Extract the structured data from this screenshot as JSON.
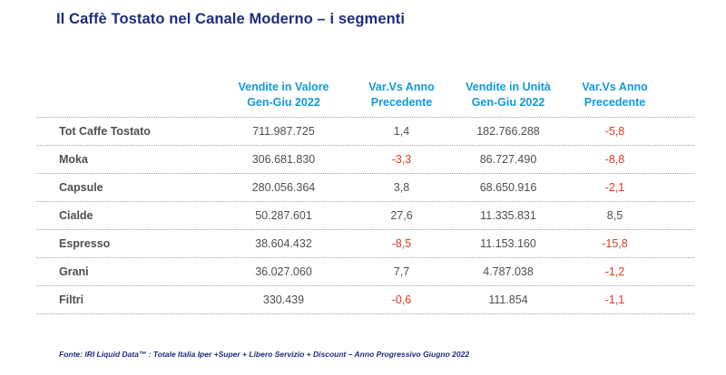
{
  "title": "Il Caffè Tostato nel Canale Moderno – i segmenti",
  "colors": {
    "navy": "#1F2C7C",
    "cyan": "#1299DB",
    "text": "#4F4F4F",
    "negative": "#DD3A21",
    "dotted": "#A3A3A3"
  },
  "table": {
    "columns": [
      {
        "line1": "Vendite in Valore",
        "line2": "Gen-Giu 2022"
      },
      {
        "line1": "Var.Vs Anno",
        "line2": "Precedente"
      },
      {
        "line1": "Vendite in Unità",
        "line2": "Gen-Giu 2022"
      },
      {
        "line1": "Var.Vs Anno",
        "line2": "Precedente"
      }
    ],
    "rows": [
      {
        "label": "Tot Caffe Tostato",
        "cells": [
          "711.987.725",
          "1,4",
          "182.766.288",
          "-5,8"
        ]
      },
      {
        "label": "Moka",
        "cells": [
          "306.681.830",
          "-3,3",
          "86.727.490",
          "-8,8"
        ]
      },
      {
        "label": "Capsule",
        "cells": [
          "280.056.364",
          "3,8",
          "68.650.916",
          "-2,1"
        ]
      },
      {
        "label": "Cialde",
        "cells": [
          "50.287.601",
          "27,6",
          "11.335.831",
          "8,5"
        ]
      },
      {
        "label": "Espresso",
        "cells": [
          "38.604.432",
          "-8,5",
          "11.153.160",
          "-15,8"
        ]
      },
      {
        "label": "Grani",
        "cells": [
          "36.027.060",
          "7,7",
          "4.787.038",
          "-1,2"
        ]
      },
      {
        "label": "Filtri",
        "cells": [
          "330.439",
          "-0,6",
          "111.854",
          "-1,1"
        ]
      }
    ]
  },
  "footer": "Fonte: IRI Liquid Data™ : Totale Italia Iper +Super +  Libero Servizio + Discount  – Anno Progressivo Giugno 2022"
}
